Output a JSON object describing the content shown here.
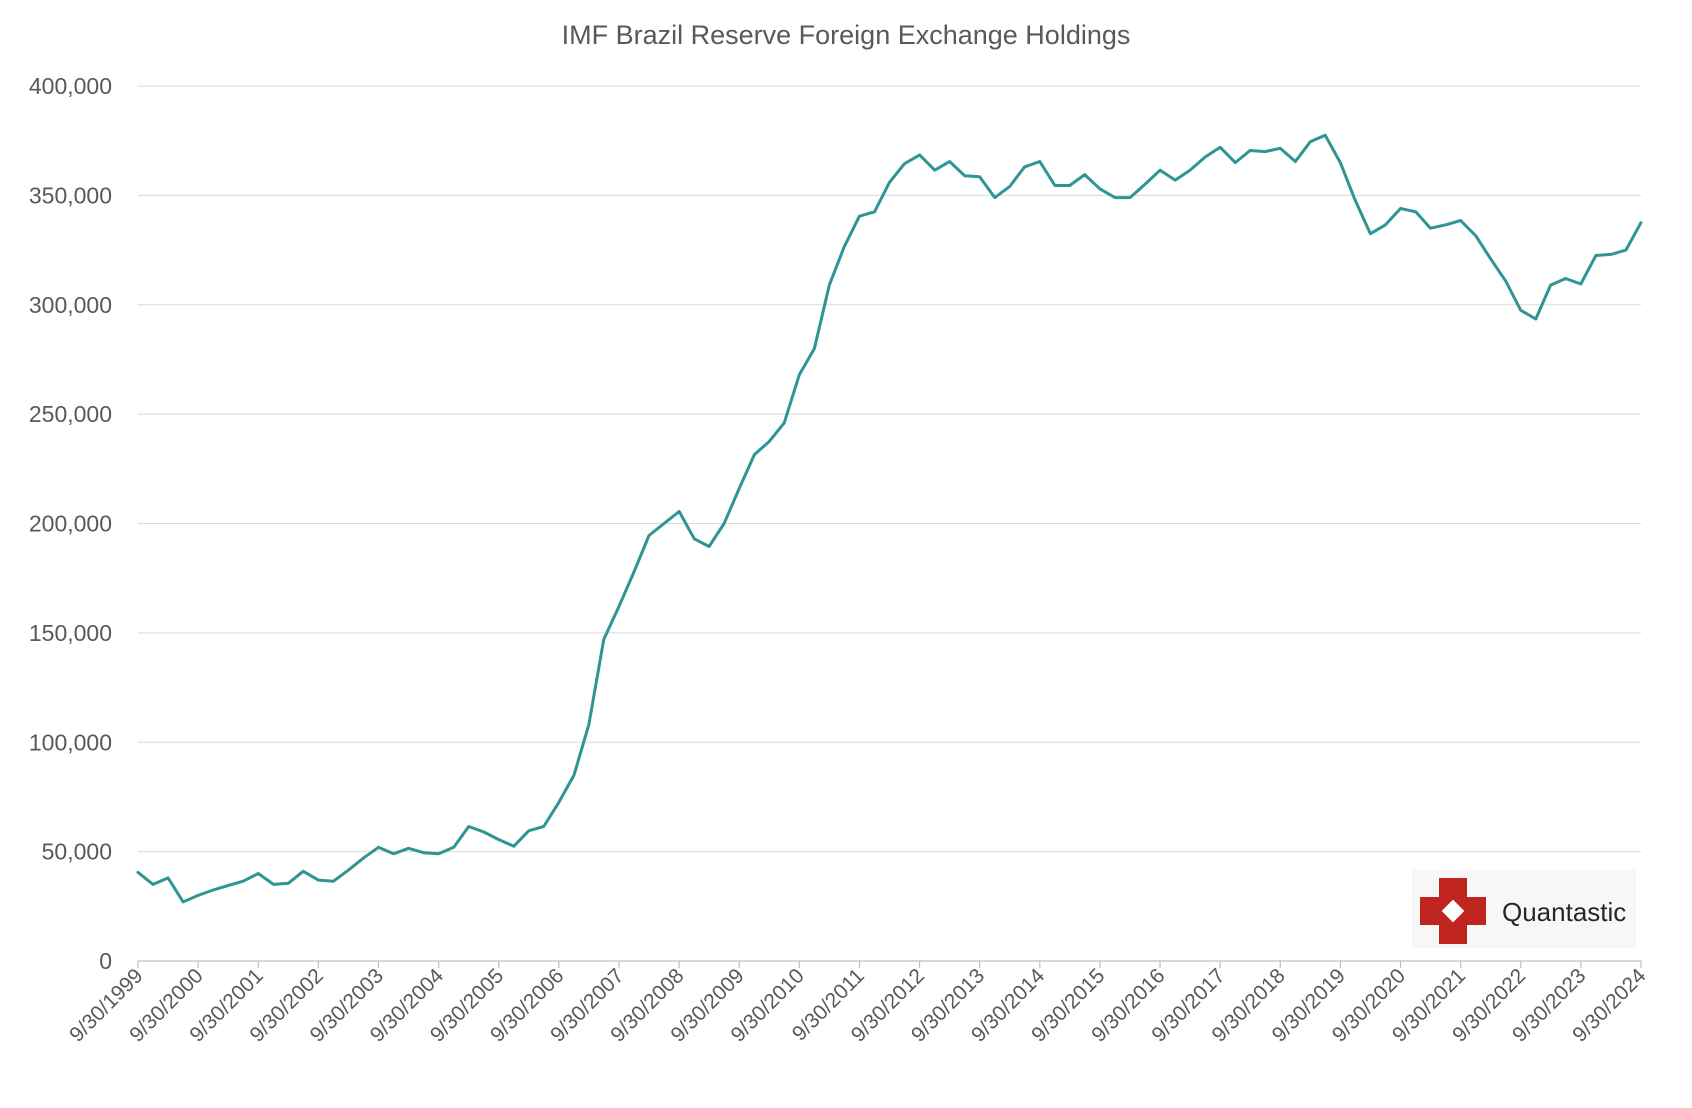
{
  "chart_data": {
    "type": "line",
    "title": "IMF Brazil Reserve Foreign Exchange Holdings",
    "xlabel": "",
    "ylabel": "",
    "ylim": [
      0,
      400000
    ],
    "yticks": [
      0,
      50000,
      100000,
      150000,
      200000,
      250000,
      300000,
      350000,
      400000
    ],
    "ytick_labels": [
      "0",
      "50,000",
      "100,000",
      "150,000",
      "200,000",
      "250,000",
      "300,000",
      "350,000",
      "400,000"
    ],
    "xlim": [
      "1999-09-30",
      "2024-09-30"
    ],
    "xtick_labels": [
      "9/30/1999",
      "9/30/2000",
      "9/30/2001",
      "9/30/2002",
      "9/30/2003",
      "9/30/2004",
      "9/30/2005",
      "9/30/2006",
      "9/30/2007",
      "9/30/2008",
      "9/30/2009",
      "9/30/2010",
      "9/30/2011",
      "9/30/2012",
      "9/30/2013",
      "9/30/2014",
      "9/30/2015",
      "9/30/2016",
      "9/30/2017",
      "9/30/2018",
      "9/30/2019",
      "9/30/2020",
      "9/30/2021",
      "9/30/2022",
      "9/30/2023",
      "9/30/2024"
    ],
    "grid": true,
    "legend": "none",
    "color": "#2e9594",
    "x": [
      "1999-09-30",
      "1999-12-31",
      "2000-03-31",
      "2000-06-30",
      "2000-09-30",
      "2000-12-31",
      "2001-03-31",
      "2001-06-30",
      "2001-09-30",
      "2001-12-31",
      "2002-03-31",
      "2002-06-30",
      "2002-09-30",
      "2002-12-31",
      "2003-03-31",
      "2003-06-30",
      "2003-09-30",
      "2003-12-31",
      "2004-03-31",
      "2004-06-30",
      "2004-09-30",
      "2004-12-31",
      "2005-03-31",
      "2005-06-30",
      "2005-09-30",
      "2005-12-31",
      "2006-03-31",
      "2006-06-30",
      "2006-09-30",
      "2006-12-31",
      "2007-03-31",
      "2007-06-30",
      "2007-09-30",
      "2007-12-31",
      "2008-03-31",
      "2008-06-30",
      "2008-09-30",
      "2008-12-31",
      "2009-03-31",
      "2009-06-30",
      "2009-09-30",
      "2009-12-31",
      "2010-03-31",
      "2010-06-30",
      "2010-09-30",
      "2010-12-31",
      "2011-03-31",
      "2011-06-30",
      "2011-09-30",
      "2011-12-31",
      "2012-03-31",
      "2012-06-30",
      "2012-09-30",
      "2012-12-31",
      "2013-03-31",
      "2013-06-30",
      "2013-09-30",
      "2013-12-31",
      "2014-03-31",
      "2014-06-30",
      "2014-09-30",
      "2014-12-31",
      "2015-03-31",
      "2015-06-30",
      "2015-09-30",
      "2015-12-31",
      "2016-03-31",
      "2016-06-30",
      "2016-09-30",
      "2016-12-31",
      "2017-03-31",
      "2017-06-30",
      "2017-09-30",
      "2017-12-31",
      "2018-03-31",
      "2018-06-30",
      "2018-09-30",
      "2018-12-31",
      "2019-03-31",
      "2019-06-30",
      "2019-09-30",
      "2019-12-31",
      "2020-03-31",
      "2020-06-30",
      "2020-09-30",
      "2020-12-31",
      "2021-03-31",
      "2021-06-30",
      "2021-09-30",
      "2021-12-31",
      "2022-03-31",
      "2022-06-30",
      "2022-09-30",
      "2022-12-31",
      "2023-03-31",
      "2023-06-30",
      "2023-09-30",
      "2023-12-31",
      "2024-03-31",
      "2024-06-30",
      "2024-09-30"
    ],
    "series": [
      {
        "values": [
          40500,
          35000,
          38000,
          27000,
          30000,
          32500,
          34500,
          36500,
          40000,
          35000,
          35500,
          41000,
          37000,
          36500,
          41500,
          47000,
          52000,
          49000,
          51500,
          49500,
          49000,
          52000,
          61500,
          59000,
          55500,
          52500,
          59500,
          61500,
          72500,
          85000,
          108000,
          147000,
          162000,
          178000,
          194500,
          200000,
          205500,
          193000,
          189500,
          200000,
          216000,
          231500,
          237500,
          246000,
          268000,
          280000,
          309000,
          326500,
          340500,
          342500,
          356000,
          364500,
          368500,
          361500,
          365500,
          359000,
          358500,
          349000,
          354000,
          363000,
          365500,
          354500,
          354500,
          359500,
          353000,
          349000,
          349000,
          355000,
          361500,
          357000,
          361500,
          367500,
          372000,
          365000,
          370500,
          370000,
          371500,
          365500,
          374500,
          377500,
          365000,
          347500,
          332500,
          336500,
          344000,
          342500,
          335000,
          336500,
          338500,
          331500,
          321000,
          311000,
          297500,
          293500,
          309000,
          312000,
          309500,
          322500,
          323000,
          325000,
          337500
        ]
      }
    ],
    "watermark": "Quantastic"
  }
}
